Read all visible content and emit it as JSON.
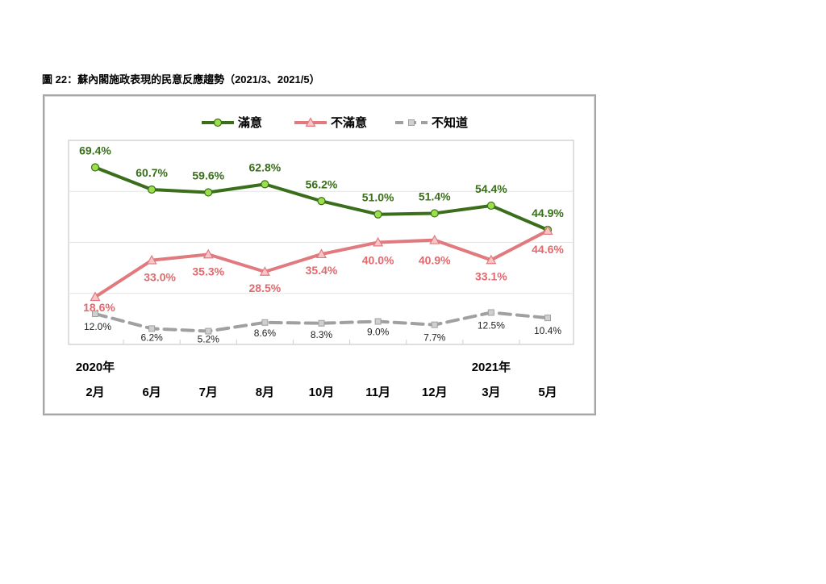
{
  "caption": "圖 22：蘇內閣施政表現的民意反應趨勢（2021/3、2021/5）",
  "chart_data": {
    "type": "line",
    "categories": [
      "2月",
      "6月",
      "7月",
      "8月",
      "10月",
      "11月",
      "12月",
      "3月",
      "5月"
    ],
    "year_labels": [
      {
        "text": "2020年",
        "category_index": 0
      },
      {
        "text": "2021年",
        "category_index": 7
      }
    ],
    "ylim": [
      0,
      80
    ],
    "grid": true,
    "legend_position": "top",
    "series": [
      {
        "name": "滿意",
        "values": [
          69.4,
          60.7,
          59.6,
          62.8,
          56.2,
          51.0,
          51.4,
          54.4,
          44.9
        ],
        "labels": [
          "69.4%",
          "60.7%",
          "59.6%",
          "62.8%",
          "56.2%",
          "51.0%",
          "51.4%",
          "54.4%",
          "44.9%"
        ],
        "color": "#3a6e1a",
        "marker": "circle",
        "marker_color": "#9be04a",
        "dashed": false
      },
      {
        "name": "不滿意",
        "values": [
          18.6,
          33.0,
          35.3,
          28.5,
          35.4,
          40.0,
          40.9,
          33.1,
          44.6
        ],
        "labels": [
          "18.6%",
          "33.0%",
          "35.3%",
          "28.5%",
          "35.4%",
          "40.0%",
          "40.9%",
          "33.1%",
          "44.6%"
        ],
        "color": "#e07a7e",
        "marker": "triangle",
        "marker_color": "#f7c6c8",
        "dashed": false
      },
      {
        "name": "不知道",
        "values": [
          12.0,
          6.2,
          5.2,
          8.6,
          8.3,
          9.0,
          7.7,
          12.5,
          10.4
        ],
        "labels": [
          "12.0%",
          "6.2%",
          "5.2%",
          "8.6%",
          "8.3%",
          "9.0%",
          "7.7%",
          "12.5%",
          "10.4%"
        ],
        "color": "#a0a0a0",
        "marker": "square",
        "marker_color": "#d0d0d0",
        "dashed": true
      }
    ]
  }
}
